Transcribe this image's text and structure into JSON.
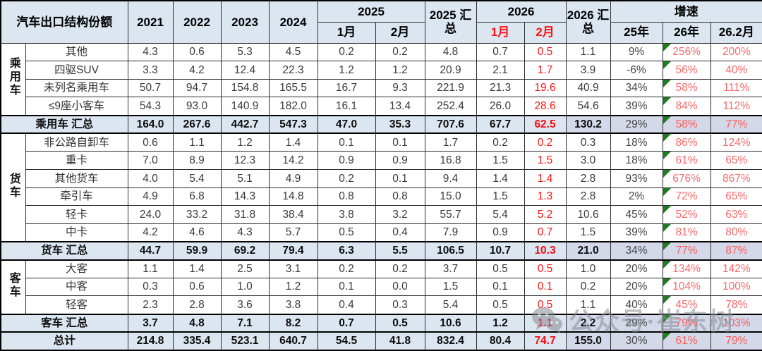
{
  "title": "汽车出口结构份额",
  "header": {
    "corner": "汽车出口结构份额",
    "year_columns": [
      "2021",
      "2022",
      "2023",
      "2024"
    ],
    "group_2025": {
      "label": "2025",
      "months": [
        "1月",
        "2月"
      ]
    },
    "total_2025": "2025 汇总",
    "group_2026": {
      "label": "2026",
      "months": [
        "1月",
        "2月"
      ]
    },
    "total_2026": "2026 汇总",
    "growth_group": {
      "label": "增速",
      "cols": [
        "25年",
        "26年",
        "26.2月"
      ]
    }
  },
  "groups": [
    {
      "name": "乘用车",
      "rows": [
        {
          "label": "其他",
          "values": [
            "4.3",
            "0.6",
            "5.3",
            "4.5",
            "0.2",
            "0.2",
            "4.8",
            "0.7",
            "0.5",
            "1.1",
            "9%",
            "256%",
            "200%"
          ]
        },
        {
          "label": "四驱SUV",
          "values": [
            "3.3",
            "4.2",
            "12.4",
            "22.3",
            "1.2",
            "1.2",
            "20.9",
            "2.1",
            "1.7",
            "3.9",
            "-6%",
            "56%",
            "40%"
          ]
        },
        {
          "label": "未列名乘用车",
          "values": [
            "50.7",
            "94.7",
            "154.8",
            "165.5",
            "16.7",
            "9.3",
            "221.9",
            "21.3",
            "19.6",
            "40.9",
            "34%",
            "58%",
            "111%"
          ]
        },
        {
          "label": "≤9座小客车",
          "values": [
            "54.3",
            "93.0",
            "140.9",
            "182.0",
            "16.1",
            "13.4",
            "252.4",
            "26.0",
            "28.6",
            "54.6",
            "39%",
            "84%",
            "112%"
          ]
        }
      ],
      "total": {
        "label": "乘用车 汇总",
        "values": [
          "164.0",
          "267.6",
          "442.7",
          "547.3",
          "47.0",
          "35.3",
          "707.6",
          "67.7",
          "62.5",
          "130.2",
          "29%",
          "58%",
          "77%"
        ]
      }
    },
    {
      "name": "货车",
      "rows": [
        {
          "label": "非公路自卸车",
          "values": [
            "0.6",
            "1.1",
            "1.2",
            "1.4",
            "0.1",
            "0.1",
            "1.7",
            "0.2",
            "0.2",
            "0.3",
            "18%",
            "86%",
            "124%"
          ]
        },
        {
          "label": "重卡",
          "values": [
            "7.0",
            "8.9",
            "12.3",
            "14.2",
            "0.9",
            "0.9",
            "16.8",
            "1.5",
            "1.5",
            "3.0",
            "18%",
            "61%",
            "65%"
          ]
        },
        {
          "label": "其他货车",
          "values": [
            "4.0",
            "5.4",
            "5.1",
            "4.9",
            "0.2",
            "0.1",
            "9.4",
            "1.4",
            "1.4",
            "2.8",
            "93%",
            "676%",
            "867%"
          ]
        },
        {
          "label": "牵引车",
          "values": [
            "4.9",
            "6.8",
            "14.3",
            "14.8",
            "0.8",
            "0.8",
            "15.0",
            "1.5",
            "1.3",
            "2.8",
            "2%",
            "72%",
            "65%"
          ]
        },
        {
          "label": "轻卡",
          "values": [
            "24.0",
            "33.2",
            "31.8",
            "38.4",
            "3.8",
            "3.2",
            "55.7",
            "5.4",
            "5.2",
            "10.6",
            "45%",
            "52%",
            "63%"
          ]
        },
        {
          "label": "中卡",
          "values": [
            "4.2",
            "4.6",
            "4.3",
            "5.7",
            "0.5",
            "0.4",
            "7.9",
            "0.9",
            "0.7",
            "1.5",
            "39%",
            "81%",
            "80%"
          ]
        }
      ],
      "total": {
        "label": "货车 汇总",
        "values": [
          "44.7",
          "59.9",
          "69.2",
          "79.4",
          "6.3",
          "5.5",
          "106.5",
          "10.7",
          "10.3",
          "21.0",
          "34%",
          "77%",
          "87%"
        ]
      }
    },
    {
      "name": "客车",
      "rows": [
        {
          "label": "大客",
          "values": [
            "1.1",
            "1.4",
            "2.5",
            "3.1",
            "0.2",
            "0.2",
            "3.7",
            "0.5",
            "0.5",
            "1.0",
            "20%",
            "134%",
            "142%"
          ]
        },
        {
          "label": "中客",
          "values": [
            "0.3",
            "0.6",
            "1.0",
            "1.2",
            "0.1",
            "0.0",
            "1.5",
            "0.1",
            "0.1",
            "0.2",
            "20%",
            "104%",
            "100%"
          ]
        },
        {
          "label": "轻客",
          "values": [
            "2.3",
            "2.8",
            "3.6",
            "3.8",
            "0.4",
            "0.3",
            "5.4",
            "0.5",
            "0.5",
            "1.1",
            "40%",
            "45%",
            "78%"
          ]
        }
      ],
      "total": {
        "label": "客车 汇总",
        "values": [
          "3.7",
          "4.8",
          "7.1",
          "8.2",
          "0.7",
          "0.5",
          "10.6",
          "1.2",
          "1.1",
          "2.2",
          "29%",
          "79%",
          "103%"
        ]
      }
    }
  ],
  "grand_total": {
    "label": "总计",
    "values": [
      "214.8",
      "335.4",
      "523.1",
      "640.7",
      "54.5",
      "41.8",
      "832.4",
      "80.4",
      "74.7",
      "155.0",
      "30%",
      "61%",
      "79%"
    ]
  },
  "watermark": {
    "text": "公众号·崔东树",
    "icon": "wechat-icon"
  },
  "colors": {
    "header_bg": "#dce6f1",
    "summary_bg": "#dce6f1",
    "summary_alt_bg": "#d4d9e9",
    "red": "#fe1414",
    "light_red": "#fb6a6a",
    "triangle_green": "#1f7d1f",
    "border": "#2e2e2e",
    "watermark_gray": "#878d96"
  }
}
